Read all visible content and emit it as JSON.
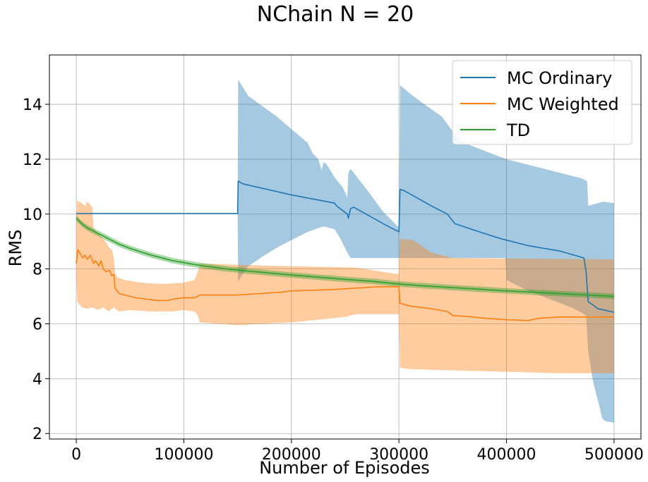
{
  "chart_data": {
    "type": "line",
    "title": "NChain N = 20",
    "xlabel": "Number of Episodes",
    "ylabel": "RMS",
    "xlim": [
      -25000,
      525000
    ],
    "ylim": [
      1.8,
      15.8
    ],
    "xticks": [
      0,
      100000,
      200000,
      300000,
      400000,
      500000
    ],
    "yticks": [
      2,
      4,
      6,
      8,
      10,
      12,
      14
    ],
    "grid": true,
    "legend_position": "top-right",
    "series": [
      {
        "name": "MC Ordinary",
        "color": "#1f77b4",
        "band_color": "#1f77b4",
        "points": [
          [
            0,
            10.02
          ],
          [
            150000,
            10.02
          ],
          [
            150500,
            11.2
          ],
          [
            155000,
            11.1
          ],
          [
            200000,
            10.7
          ],
          [
            240000,
            10.4
          ],
          [
            242000,
            10.3
          ],
          [
            252000,
            10.0
          ],
          [
            253000,
            9.85
          ],
          [
            255000,
            10.2
          ],
          [
            258000,
            10.25
          ],
          [
            290000,
            9.55
          ],
          [
            300000,
            9.35
          ],
          [
            301000,
            10.9
          ],
          [
            305000,
            10.85
          ],
          [
            330000,
            10.3
          ],
          [
            345000,
            10.0
          ],
          [
            352000,
            9.65
          ],
          [
            375000,
            9.35
          ],
          [
            395000,
            9.1
          ],
          [
            420000,
            8.85
          ],
          [
            450000,
            8.65
          ],
          [
            472000,
            8.4
          ],
          [
            474000,
            7.9
          ],
          [
            476000,
            6.8
          ],
          [
            480000,
            6.7
          ],
          [
            485000,
            6.55
          ],
          [
            500000,
            6.42
          ]
        ],
        "upper": [
          [
            150000,
            10.02
          ],
          [
            150500,
            14.9
          ],
          [
            160000,
            14.3
          ],
          [
            185000,
            13.6
          ],
          [
            200000,
            13.1
          ],
          [
            215000,
            12.6
          ],
          [
            220000,
            12.2
          ],
          [
            225000,
            12.0
          ],
          [
            228000,
            11.6
          ],
          [
            230000,
            11.9
          ],
          [
            233000,
            11.8
          ],
          [
            240000,
            11.35
          ],
          [
            248000,
            10.95
          ],
          [
            252000,
            10.6
          ],
          [
            253000,
            11.5
          ],
          [
            255000,
            11.65
          ],
          [
            260000,
            11.4
          ],
          [
            270000,
            10.9
          ],
          [
            285000,
            10.1
          ],
          [
            300000,
            9.5
          ],
          [
            301000,
            14.7
          ],
          [
            310000,
            14.4
          ],
          [
            320000,
            14.1
          ],
          [
            340000,
            13.55
          ],
          [
            352000,
            12.9
          ],
          [
            360000,
            12.6
          ],
          [
            380000,
            12.3
          ],
          [
            400000,
            12.0
          ],
          [
            420000,
            11.8
          ],
          [
            440000,
            11.6
          ],
          [
            460000,
            11.4
          ],
          [
            470000,
            11.3
          ],
          [
            475000,
            11.2
          ],
          [
            476000,
            10.3
          ],
          [
            485000,
            10.4
          ],
          [
            490000,
            10.45
          ],
          [
            500000,
            10.4
          ]
        ],
        "lower": [
          [
            150000,
            10.02
          ],
          [
            150500,
            7.55
          ],
          [
            160000,
            8.1
          ],
          [
            175000,
            8.5
          ],
          [
            190000,
            8.85
          ],
          [
            200000,
            9.05
          ],
          [
            215000,
            9.35
          ],
          [
            230000,
            9.55
          ],
          [
            240000,
            9.45
          ],
          [
            245000,
            9.15
          ],
          [
            250000,
            8.75
          ],
          [
            252000,
            8.6
          ],
          [
            255000,
            8.4
          ],
          [
            300000,
            8.4
          ],
          [
            301000,
            8.4
          ],
          [
            399000,
            8.4
          ],
          [
            400000,
            7.6
          ],
          [
            420000,
            7.2
          ],
          [
            440000,
            6.9
          ],
          [
            460000,
            6.6
          ],
          [
            470000,
            6.4
          ],
          [
            474000,
            6.3
          ],
          [
            476000,
            5.0
          ],
          [
            480000,
            4.0
          ],
          [
            483000,
            3.5
          ],
          [
            486000,
            3.05
          ],
          [
            489000,
            2.55
          ],
          [
            492000,
            2.45
          ],
          [
            500000,
            2.4
          ]
        ]
      },
      {
        "name": "MC Weighted",
        "color": "#ff7f0e",
        "band_color": "#ff7f0e",
        "points": [
          [
            0,
            8.2
          ],
          [
            1500,
            8.7
          ],
          [
            3000,
            8.6
          ],
          [
            6000,
            8.4
          ],
          [
            8000,
            8.5
          ],
          [
            10000,
            8.35
          ],
          [
            13000,
            8.5
          ],
          [
            16000,
            8.2
          ],
          [
            18000,
            8.3
          ],
          [
            21000,
            8.1
          ],
          [
            23000,
            8.3
          ],
          [
            25000,
            8.0
          ],
          [
            28000,
            7.9
          ],
          [
            31000,
            7.95
          ],
          [
            33000,
            7.75
          ],
          [
            35000,
            7.8
          ],
          [
            36000,
            7.3
          ],
          [
            38000,
            7.2
          ],
          [
            40000,
            7.1
          ],
          [
            45000,
            7.05
          ],
          [
            55000,
            6.95
          ],
          [
            65000,
            6.9
          ],
          [
            75000,
            6.85
          ],
          [
            85000,
            6.85
          ],
          [
            90000,
            6.9
          ],
          [
            100000,
            6.95
          ],
          [
            110000,
            6.95
          ],
          [
            113000,
            7.0
          ],
          [
            115000,
            7.05
          ],
          [
            150000,
            7.05
          ],
          [
            170000,
            7.1
          ],
          [
            190000,
            7.15
          ],
          [
            200000,
            7.2
          ],
          [
            240000,
            7.25
          ],
          [
            260000,
            7.3
          ],
          [
            280000,
            7.35
          ],
          [
            300000,
            7.35
          ],
          [
            301000,
            6.75
          ],
          [
            310000,
            6.65
          ],
          [
            330000,
            6.55
          ],
          [
            345000,
            6.45
          ],
          [
            350000,
            6.3
          ],
          [
            360000,
            6.28
          ],
          [
            380000,
            6.2
          ],
          [
            400000,
            6.15
          ],
          [
            420000,
            6.12
          ],
          [
            430000,
            6.2
          ],
          [
            450000,
            6.25
          ],
          [
            500000,
            6.25
          ]
        ],
        "upper": [
          [
            0,
            9.85
          ],
          [
            1000,
            10.5
          ],
          [
            5000,
            10.4
          ],
          [
            8000,
            10.3
          ],
          [
            10000,
            10.45
          ],
          [
            15000,
            10.25
          ],
          [
            16000,
            9.5
          ],
          [
            20000,
            9.3
          ],
          [
            25000,
            9.1
          ],
          [
            28000,
            8.95
          ],
          [
            30000,
            8.8
          ],
          [
            33000,
            8.7
          ],
          [
            35000,
            8.4
          ],
          [
            36000,
            7.85
          ],
          [
            38000,
            7.7
          ],
          [
            45000,
            7.6
          ],
          [
            60000,
            7.5
          ],
          [
            80000,
            7.45
          ],
          [
            100000,
            7.5
          ],
          [
            110000,
            7.6
          ],
          [
            113000,
            7.9
          ],
          [
            115000,
            8.2
          ],
          [
            150000,
            8.15
          ],
          [
            200000,
            8.1
          ],
          [
            260000,
            8.05
          ],
          [
            300000,
            7.8
          ],
          [
            301000,
            9.1
          ],
          [
            313000,
            9.05
          ],
          [
            330000,
            8.6
          ],
          [
            340000,
            8.5
          ],
          [
            345000,
            8.45
          ],
          [
            350000,
            8.4
          ],
          [
            500000,
            8.35
          ]
        ],
        "lower": [
          [
            0,
            7.6
          ],
          [
            1000,
            6.8
          ],
          [
            5000,
            6.6
          ],
          [
            10000,
            6.55
          ],
          [
            15000,
            6.6
          ],
          [
            20000,
            6.5
          ],
          [
            25000,
            6.6
          ],
          [
            30000,
            6.45
          ],
          [
            35000,
            6.6
          ],
          [
            36000,
            6.55
          ],
          [
            40000,
            6.45
          ],
          [
            50000,
            6.5
          ],
          [
            70000,
            6.45
          ],
          [
            90000,
            6.45
          ],
          [
            100000,
            6.5
          ],
          [
            110000,
            6.45
          ],
          [
            113000,
            6.3
          ],
          [
            115000,
            6.05
          ],
          [
            150000,
            5.95
          ],
          [
            200000,
            6.05
          ],
          [
            250000,
            6.25
          ],
          [
            260000,
            6.35
          ],
          [
            300000,
            6.35
          ],
          [
            301000,
            4.4
          ],
          [
            310000,
            4.35
          ],
          [
            350000,
            4.3
          ],
          [
            400000,
            4.25
          ],
          [
            450000,
            4.2
          ],
          [
            500000,
            4.2
          ]
        ]
      },
      {
        "name": "TD",
        "color": "#2ca02c",
        "band_color": "#2ca02c",
        "points": [
          [
            0,
            9.85
          ],
          [
            5000,
            9.65
          ],
          [
            10000,
            9.5
          ],
          [
            20000,
            9.3
          ],
          [
            30000,
            9.1
          ],
          [
            40000,
            8.9
          ],
          [
            50000,
            8.75
          ],
          [
            60000,
            8.62
          ],
          [
            70000,
            8.5
          ],
          [
            80000,
            8.4
          ],
          [
            90000,
            8.3
          ],
          [
            100000,
            8.23
          ],
          [
            110000,
            8.16
          ],
          [
            120000,
            8.1
          ],
          [
            140000,
            8.0
          ],
          [
            160000,
            7.92
          ],
          [
            180000,
            7.85
          ],
          [
            200000,
            7.78
          ],
          [
            225000,
            7.7
          ],
          [
            250000,
            7.62
          ],
          [
            275000,
            7.55
          ],
          [
            300000,
            7.45
          ],
          [
            325000,
            7.38
          ],
          [
            350000,
            7.32
          ],
          [
            375000,
            7.26
          ],
          [
            400000,
            7.2
          ],
          [
            425000,
            7.15
          ],
          [
            450000,
            7.1
          ],
          [
            475000,
            7.05
          ],
          [
            500000,
            7.0
          ]
        ],
        "band_halfwidth": 0.1
      }
    ]
  }
}
